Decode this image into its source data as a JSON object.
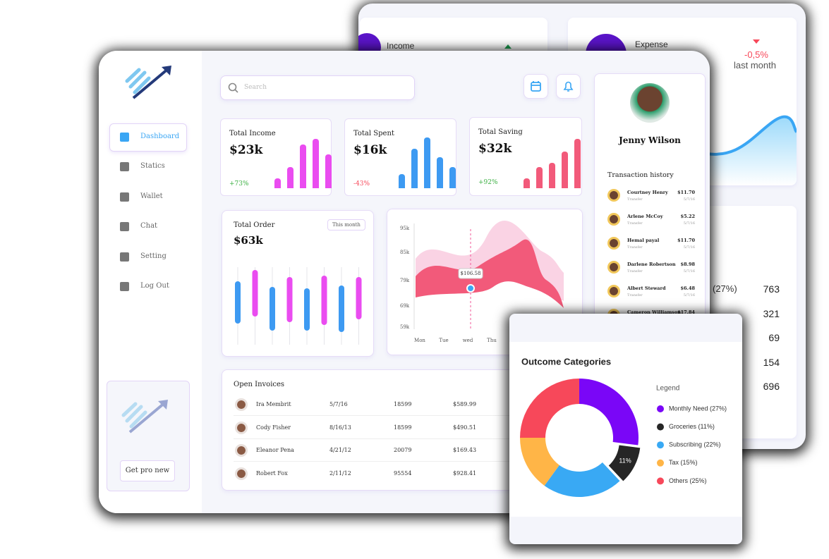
{
  "back_panel": {
    "income_label": "Income",
    "expense_label": "Expense",
    "expense_change": "-0,5%",
    "expense_period": "last month",
    "stats": [
      {
        "label": "(27%)",
        "value": 763
      },
      {
        "value": 321
      },
      {
        "value": 69
      },
      {
        "value": 154
      },
      {
        "value": 696
      }
    ]
  },
  "sidebar": {
    "nav": [
      "Dashboard",
      "Statics",
      "Wallet",
      "Chat",
      "Setting",
      "Log Out"
    ],
    "promo_button": "Get pro new"
  },
  "header": {
    "search_placeholder": "Search"
  },
  "cards": [
    {
      "title": "Total Income",
      "amount": "$23k",
      "change": "+73%"
    },
    {
      "title": "Total Spent",
      "amount": "$16k",
      "change": "-43%"
    },
    {
      "title": "Total Saving",
      "amount": "$32k",
      "change": "+92%"
    }
  ],
  "order_card": {
    "title": "Total Order",
    "amount": "$63k",
    "period": "This month"
  },
  "trend_chart": {
    "y_labels": [
      "95k",
      "85k",
      "79k",
      "69k",
      "59k"
    ],
    "x_labels": [
      "Mon",
      "Tue",
      "wed",
      "Thu"
    ],
    "tooltip": "$106.58"
  },
  "profile": {
    "name": "Jenny Wilson",
    "history_title": "Transaction history",
    "transactions": [
      {
        "name": "Courtney Henry",
        "type": "Transfer",
        "amount": "$11.70",
        "date": "5/7/16"
      },
      {
        "name": "Arlene McCoy",
        "type": "Transfer",
        "amount": "$5.22",
        "date": "5/7/16"
      },
      {
        "name": "Hemal payal",
        "type": "Transfer",
        "amount": "$11.70",
        "date": "5/7/16"
      },
      {
        "name": "Darlene Robertson",
        "type": "Transfer",
        "amount": "$8.98",
        "date": "5/7/16"
      },
      {
        "name": "Albert Steward",
        "type": "Transfer",
        "amount": "$6.48",
        "date": "5/7/16"
      },
      {
        "name": "Cameron Williamson",
        "amount": "$17.84"
      }
    ]
  },
  "invoices": {
    "title": "Open Invoices",
    "rows": [
      [
        "Ira Membrit",
        "5/7/16",
        "18599",
        "$589.99"
      ],
      [
        "Cody Fisher",
        "8/16/13",
        "18599",
        "$490.51"
      ],
      [
        "Eleanor Pena",
        "4/21/12",
        "20079",
        "$169.43"
      ],
      [
        "Robert Fox",
        "2/11/12",
        "95554",
        "$928.41"
      ]
    ]
  },
  "chart_data": {
    "type": "pie",
    "donut": true,
    "title": "Outcome Categories",
    "legend_title": "Legend",
    "legend": "right",
    "categories": [
      "Monthly Need (27%)",
      "Groceries (11%)",
      "Subscribing (22%)",
      "Tax (15%)",
      "Others (25%)"
    ],
    "values": [
      27,
      11,
      22,
      15,
      25
    ],
    "value_labels": [
      null,
      "11%",
      null,
      null,
      null
    ],
    "colors": [
      "#7a06f7",
      "#262626",
      "#39a9f4",
      "#ffb547",
      "#f7485a"
    ]
  }
}
